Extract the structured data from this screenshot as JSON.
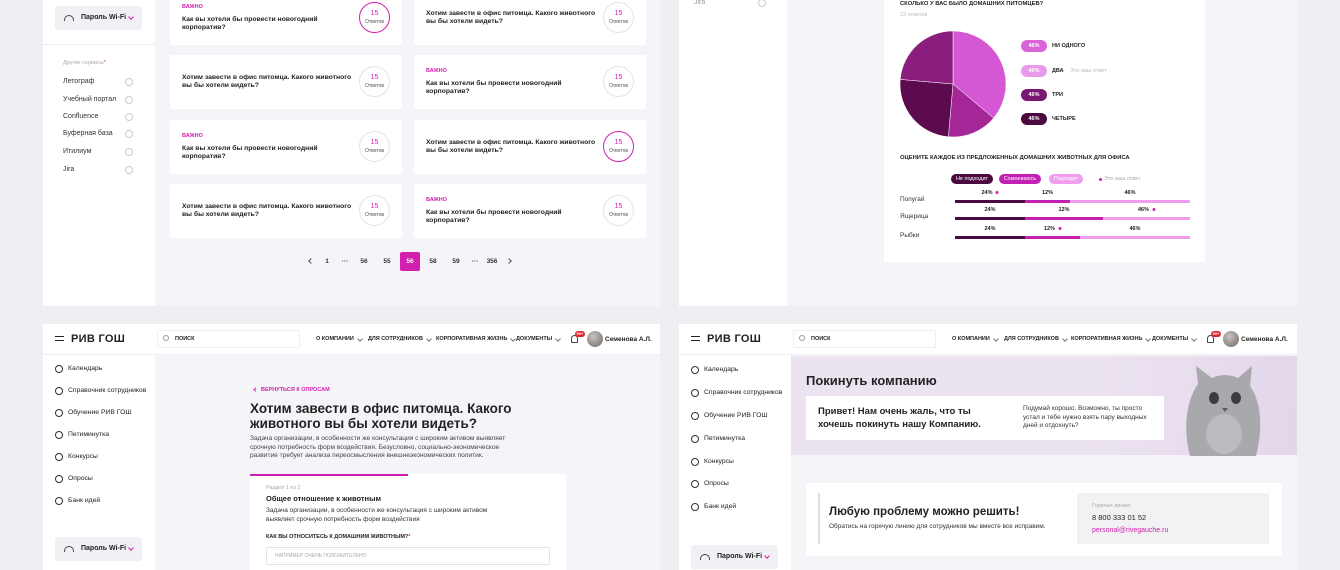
{
  "top_left": {
    "wifi": "Пароль Wi-Fi",
    "services_title": "Другие сервисы",
    "services_asterisk": "*",
    "services": [
      "Летограф",
      "Учебный портал",
      "Confluence",
      "Буферная база",
      "Итилиум",
      "Jira"
    ],
    "cards": [
      {
        "tag": "ВАЖНО",
        "question": "Как вы хотели бы провести новогодний корпоратив?",
        "count": "15",
        "count_label": "Ответов",
        "highlighted": true
      },
      {
        "question": "Хотим завести в офис питомца. Какого животного вы бы хотели видеть?",
        "count": "15",
        "count_label": "Ответов",
        "highlighted": false
      },
      {
        "question": "Хотим завести в офис питомца. Какого животного вы бы хотели видеть?",
        "count": "15",
        "count_label": "Ответов",
        "highlighted": false
      },
      {
        "tag": "ВАЖНО",
        "question": "Как вы хотели бы провести новогодний корпоратив?",
        "count": "15",
        "count_label": "Ответов",
        "highlighted": false
      },
      {
        "tag": "ВАЖНО",
        "question": "Как вы хотели бы провести новогодний корпоратив?",
        "count": "15",
        "count_label": "Ответов",
        "highlighted": false
      },
      {
        "question": "Хотим завести в офис питомца. Какого животного вы бы хотели видеть?",
        "count": "15",
        "count_label": "Ответов",
        "highlighted": true
      },
      {
        "question": "Хотим завести в офис питомца. Какого животного вы бы хотели видеть?",
        "count": "15",
        "count_label": "Ответов",
        "highlighted": false
      },
      {
        "tag": "ВАЖНО",
        "question": "Как вы хотели бы провести новогодний корпоратив?",
        "count": "15",
        "count_label": "Ответов",
        "highlighted": false
      }
    ],
    "pagination": {
      "pages": [
        "1",
        "···",
        "56",
        "55",
        "56",
        "58",
        "59",
        "···",
        "356"
      ],
      "current": 4
    }
  },
  "top_right": {
    "sidebar_item": "Jira",
    "poll": {
      "question": "СКОЛЬКО У ВАС БЫЛО ДОМАШНИХ ПИТОМЦЕВ?",
      "responses": "13 ответов",
      "options": [
        {
          "percent": "46%",
          "label": "НИ ОДНОГО",
          "color": "#d964d8"
        },
        {
          "percent": "46%",
          "label": "ДВА",
          "note": "Это ваш ответ",
          "color": "#e79ce9"
        },
        {
          "percent": "46%",
          "label": "ТРИ",
          "color": "#7a1770"
        },
        {
          "percent": "46%",
          "label": "ЧЕТЫРЕ",
          "color": "#4a0a40"
        }
      ]
    },
    "rating": {
      "question": "ОЦЕНИТЕ КАЖДОЕ ИЗ ПРЕДЛОЖЕННЫХ ДОМАШНИХ ЖИВОТНЫХ ДЛЯ ОФИСА",
      "legend": [
        {
          "label": "Не подходит",
          "color": "#4a0a40"
        },
        {
          "label": "Сомневаюсь",
          "color": "#c21fb3"
        },
        {
          "label": "Подходит",
          "color": "#ee9eec"
        }
      ],
      "your_answer": "Это ваш ответ",
      "rows": [
        {
          "label": "Попугай",
          "values": [
            "24%",
            "12%",
            "46%"
          ],
          "selected": 0
        },
        {
          "label": "Ящерица",
          "values": [
            "24%",
            "12%",
            "46%"
          ],
          "selected": 2
        },
        {
          "label": "Рыбки",
          "values": [
            "24%",
            "12%",
            "46%"
          ],
          "selected": 1
        }
      ]
    }
  },
  "bottom_left": {
    "header": {
      "logo": "РИВ ГОШ",
      "search": "ПОИСК",
      "nav": [
        "О КОМПАНИИ",
        "ДЛЯ СОТРУДНИКОВ",
        "КОРПОРАТИВНАЯ ЖИЗНЬ",
        "ДОКУМЕНТЫ"
      ],
      "badge": "99+",
      "user": "Семенова А.Л."
    },
    "sidebar": [
      "Календарь",
      "Справочник сотрудников",
      "Обучение РИВ ГОШ",
      "Петиминутка",
      "Конкурсы",
      "Опросы",
      "Банк идей"
    ],
    "wifi": "Пароль Wi-Fi",
    "back": "ВЕРНУТЬСЯ К ОПРОСАМ",
    "title": "Хотим завести в офис питомца. Какого животного вы бы хотели видеть?",
    "description": "Задача организации, в особенности же консультация с широким активом выявляет срочную потребность форм воздействия. Безусловно, социально-экономическое развитие требует анализа переосмысления внешнеэкономических политик.",
    "section": {
      "step": "Раздел 1 из 2",
      "title": "Общее отношение к животным",
      "description": "Задача организации, в особенности же консультация с широким активом выявляет срочную потребность форм воздействия",
      "question": "КАК ВЫ ОТНОСИТЕСЬ К ДОМАШНИМ ЖИВОТНЫМ?",
      "required": "*",
      "placeholder": "НАПРИМЕР ОЧЕНЬ ПОЛОЖИТЕЛЬНО"
    }
  },
  "bottom_right": {
    "header": {
      "logo": "РИВ ГОШ",
      "search": "ПОИСК",
      "nav": [
        "О КОМПАНИИ",
        "ДЛЯ СОТРУДНИКОВ",
        "КОРПОРАТИВНАЯ ЖИЗНЬ",
        "ДОКУМЕНТЫ"
      ],
      "badge": "99+",
      "user": "Семенова А.Л."
    },
    "sidebar": [
      "Календарь",
      "Справочник сотрудников",
      "Обучение РИВ ГОШ",
      "Петиминутка",
      "Конкурсы",
      "Опросы",
      "Банк идей"
    ],
    "wifi": "Пароль Wi-Fi",
    "banner": {
      "title": "Покинуть компанию",
      "greeting": "Привет! Нам очень жаль, что ты хочешь покинуть нашу Компанию.",
      "advice": "Подумай хорошо. Возможно, ты просто устал и тебе нужно взять пару выходных дней и отдохнуть?"
    },
    "help": {
      "title": "Любую проблему можно решить!",
      "text": "Обратись на горячую линию для сотрудников мы вместе все исправим.",
      "hotline_label": "Горячая линия:",
      "phone": "8 800 333 01 52",
      "email": "personal@rivegauche.ru"
    }
  }
}
